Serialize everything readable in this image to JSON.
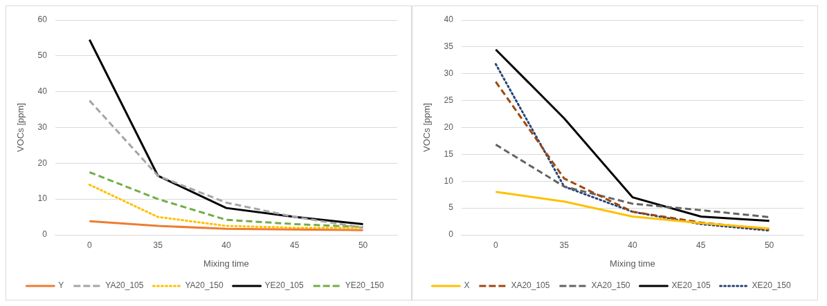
{
  "chart_data": [
    {
      "type": "line",
      "categories": [
        "0",
        "35",
        "40",
        "45",
        "50"
      ],
      "xlabel": "Mixing time",
      "ylabel": "VOCs [ppm]",
      "ylim": [
        0,
        60
      ],
      "yticks": [
        0,
        10,
        20,
        30,
        40,
        50,
        60
      ],
      "grid": "y",
      "legend": "bottom",
      "marker": "none",
      "series": [
        {
          "name": "Y",
          "color": "#ed7d31",
          "line_style": "solid",
          "values": [
            3.8,
            2.5,
            1.7,
            1.5,
            1.3
          ]
        },
        {
          "name": "YA20_105",
          "color": "#a5a5a5",
          "line_style": "dashed",
          "values": [
            37.5,
            16.5,
            9,
            5,
            2
          ]
        },
        {
          "name": "YA20_150",
          "color": "#ffc000",
          "line_style": "dotted",
          "values": [
            14,
            5,
            2.5,
            2,
            2
          ]
        },
        {
          "name": "YE20_105",
          "color": "#000000",
          "line_style": "solid",
          "values": [
            54.5,
            16.5,
            7.5,
            5,
            3
          ]
        },
        {
          "name": "YE20_150",
          "color": "#70ad47",
          "line_style": "dashed",
          "values": [
            17.5,
            10,
            4.2,
            3,
            2.2
          ]
        }
      ]
    },
    {
      "type": "line",
      "categories": [
        "0",
        "35",
        "40",
        "45",
        "50"
      ],
      "xlabel": "Mixing time",
      "ylabel": "VOCs [ppm]",
      "ylim": [
        0,
        40
      ],
      "yticks": [
        0,
        5,
        10,
        15,
        20,
        25,
        30,
        35,
        40
      ],
      "grid": "y",
      "legend": "bottom",
      "marker": "none",
      "series": [
        {
          "name": "X",
          "color": "#ffc000",
          "line_style": "solid",
          "values": [
            8,
            6.2,
            3.4,
            2.2,
            1.2
          ]
        },
        {
          "name": "XA20_105",
          "color": "#9e480e",
          "line_style": "dashed",
          "values": [
            28.5,
            10.5,
            4.3,
            2.3,
            1
          ]
        },
        {
          "name": "XA20_150",
          "color": "#636363",
          "line_style": "dashed",
          "values": [
            16.8,
            9,
            5.8,
            4.6,
            3.3
          ]
        },
        {
          "name": "XE20_105",
          "color": "#000000",
          "line_style": "solid",
          "values": [
            34.5,
            21.7,
            7,
            3.4,
            2.6
          ]
        },
        {
          "name": "XE20_150",
          "color": "#264478",
          "line_style": "dotted",
          "values": [
            31.8,
            9,
            4.3,
            2,
            0.8
          ]
        }
      ]
    }
  ]
}
